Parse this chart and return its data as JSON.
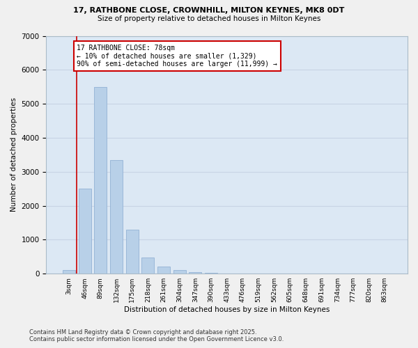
{
  "title1": "17, RATHBONE CLOSE, CROWNHILL, MILTON KEYNES, MK8 0DT",
  "title2": "Size of property relative to detached houses in Milton Keynes",
  "xlabel": "Distribution of detached houses by size in Milton Keynes",
  "ylabel": "Number of detached properties",
  "bar_color": "#b8d0e8",
  "bar_edge_color": "#88aad0",
  "grid_color": "#c8d4e4",
  "background_color": "#dce8f4",
  "fig_background": "#f0f0f0",
  "categories": [
    "3sqm",
    "46sqm",
    "89sqm",
    "132sqm",
    "175sqm",
    "218sqm",
    "261sqm",
    "304sqm",
    "347sqm",
    "390sqm",
    "433sqm",
    "476sqm",
    "519sqm",
    "562sqm",
    "605sqm",
    "648sqm",
    "691sqm",
    "734sqm",
    "777sqm",
    "820sqm",
    "863sqm"
  ],
  "values": [
    100,
    2500,
    5500,
    3350,
    1300,
    480,
    215,
    100,
    50,
    30,
    5,
    2,
    0,
    0,
    0,
    0,
    0,
    0,
    0,
    0,
    0
  ],
  "ylim": [
    0,
    7000
  ],
  "yticks": [
    0,
    1000,
    2000,
    3000,
    4000,
    5000,
    6000,
    7000
  ],
  "property_line_x": 0.5,
  "annotation_title": "17 RATHBONE CLOSE: 78sqm",
  "annotation_line1": "← 10% of detached houses are smaller (1,329)",
  "annotation_line2": "90% of semi-detached houses are larger (11,999) →",
  "annotation_box_color": "#ffffff",
  "annotation_box_edge": "#cc0000",
  "vline_color": "#cc0000",
  "footnote1": "Contains HM Land Registry data © Crown copyright and database right 2025.",
  "footnote2": "Contains public sector information licensed under the Open Government Licence v3.0."
}
